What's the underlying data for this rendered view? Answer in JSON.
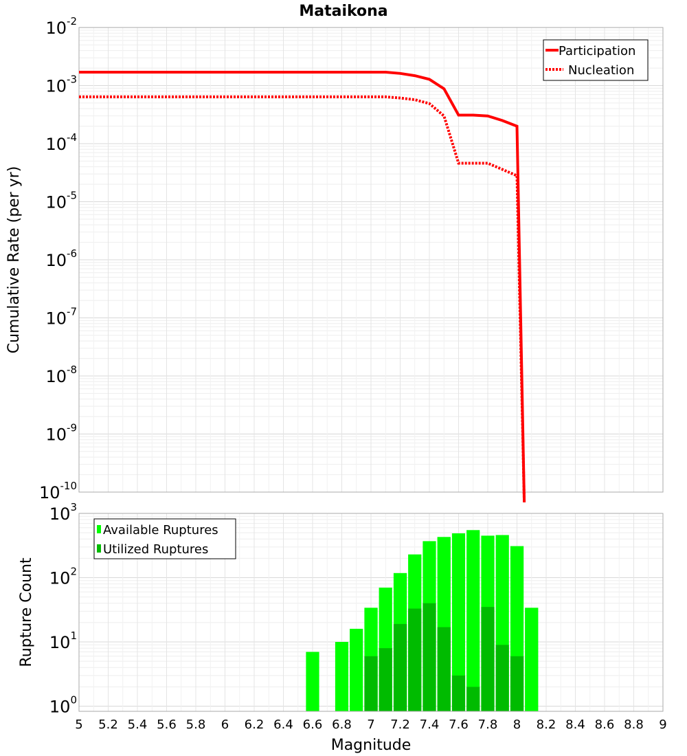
{
  "chart_data": [
    {
      "type": "line",
      "title": "Mataikona",
      "xlabel": "",
      "ylabel": "Cumulative Rate (per yr)",
      "xlim": [
        5,
        9
      ],
      "ylim_log10": [
        -10,
        -2
      ],
      "yticks": [
        {
          "base": "10",
          "exp": "-2"
        },
        {
          "base": "10",
          "exp": "-3"
        },
        {
          "base": "10",
          "exp": "-4"
        },
        {
          "base": "10",
          "exp": "-5"
        },
        {
          "base": "10",
          "exp": "-6"
        },
        {
          "base": "10",
          "exp": "-7"
        },
        {
          "base": "10",
          "exp": "-8"
        },
        {
          "base": "10",
          "exp": "-9"
        },
        {
          "base": "10",
          "exp": "-10"
        }
      ],
      "legend": {
        "position": "top-right",
        "entries": [
          "Participation",
          "Nucleation"
        ]
      },
      "series": [
        {
          "name": "Participation",
          "color": "#ff0000",
          "style": "solid",
          "x": [
            5.0,
            7.1,
            7.2,
            7.3,
            7.4,
            7.5,
            7.6,
            7.7,
            7.8,
            7.9,
            8.0,
            8.05
          ],
          "y": [
            0.0017,
            0.0017,
            0.00162,
            0.00148,
            0.00128,
            0.00088,
            0.00031,
            0.00031,
            0.0003,
            0.00025,
            0.0002,
            1e-10
          ]
        },
        {
          "name": "Nucleation",
          "color": "#ff0000",
          "style": "dotted",
          "x": [
            5.0,
            7.1,
            7.2,
            7.3,
            7.4,
            7.5,
            7.6,
            7.7,
            7.8,
            7.9,
            8.0,
            8.05
          ],
          "y": [
            0.00064,
            0.00064,
            0.00061,
            0.00057,
            0.00049,
            0.0003,
            4.6e-05,
            4.6e-05,
            4.6e-05,
            3.6e-05,
            2.8e-05,
            1e-10
          ]
        }
      ]
    },
    {
      "type": "bar",
      "title": "",
      "xlabel": "Magnitude",
      "ylabel": "Rupture Count",
      "xlim": [
        5,
        9
      ],
      "ylim_log10": [
        -0.08,
        3
      ],
      "xticks": [
        "5",
        "5.2",
        "5.4",
        "5.6",
        "5.8",
        "6",
        "6.2",
        "6.4",
        "6.6",
        "6.8",
        "7",
        "7.2",
        "7.4",
        "7.6",
        "7.8",
        "8",
        "8.2",
        "8.4",
        "8.6",
        "8.8",
        "9"
      ],
      "yticks": [
        {
          "base": "10",
          "exp": "3"
        },
        {
          "base": "10",
          "exp": "2"
        },
        {
          "base": "10",
          "exp": "1"
        },
        {
          "base": "10",
          "exp": "0"
        }
      ],
      "bar_width": 0.1,
      "legend": {
        "position": "top-left",
        "entries": [
          "Available Ruptures",
          "Utilized Ruptures"
        ]
      },
      "series": [
        {
          "name": "Available Ruptures",
          "color": "#00ff00",
          "x": [
            6.6,
            6.8,
            6.9,
            7.0,
            7.1,
            7.2,
            7.3,
            7.4,
            7.5,
            7.6,
            7.7,
            7.8,
            7.9,
            8.0,
            8.1
          ],
          "values": [
            7,
            10,
            16,
            34,
            70,
            118,
            230,
            370,
            430,
            490,
            550,
            450,
            460,
            310,
            34
          ]
        },
        {
          "name": "Utilized Ruptures",
          "color": "#00bb00",
          "x": [
            7.0,
            7.1,
            7.2,
            7.3,
            7.4,
            7.5,
            7.6,
            7.7,
            7.8,
            7.9,
            8.0
          ],
          "values": [
            6,
            8,
            19,
            33,
            40,
            17,
            3,
            2,
            35,
            9,
            6
          ]
        }
      ]
    }
  ]
}
